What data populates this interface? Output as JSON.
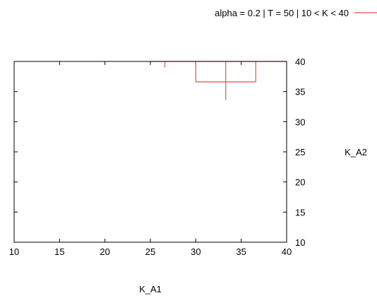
{
  "chart_data": {
    "type": "line",
    "xlabel": "K_A1",
    "ylabel": "K_A2",
    "xlim": [
      10,
      40
    ],
    "ylim": [
      10,
      40
    ],
    "x_ticks": [
      10,
      15,
      20,
      25,
      30,
      35,
      40
    ],
    "y_ticks": [
      10,
      15,
      20,
      25,
      30,
      35,
      40
    ],
    "legend_position": "top-right",
    "series": [
      {
        "name": "alpha = 0.2 | T = 50 | 10 < K < 40",
        "color": "#e05050",
        "segments": [
          [
            [
              25,
              40
            ],
            [
              40,
              40
            ]
          ],
          [
            [
              26.6,
              40
            ],
            [
              26.6,
              39.0
            ]
          ],
          [
            [
              30,
              40
            ],
            [
              30,
              36.6
            ]
          ],
          [
            [
              30,
              36.6
            ],
            [
              36.6,
              36.6
            ]
          ],
          [
            [
              33.3,
              40
            ],
            [
              33.3,
              33.6
            ]
          ],
          [
            [
              36.6,
              40
            ],
            [
              36.6,
              36.6
            ]
          ]
        ]
      }
    ]
  }
}
